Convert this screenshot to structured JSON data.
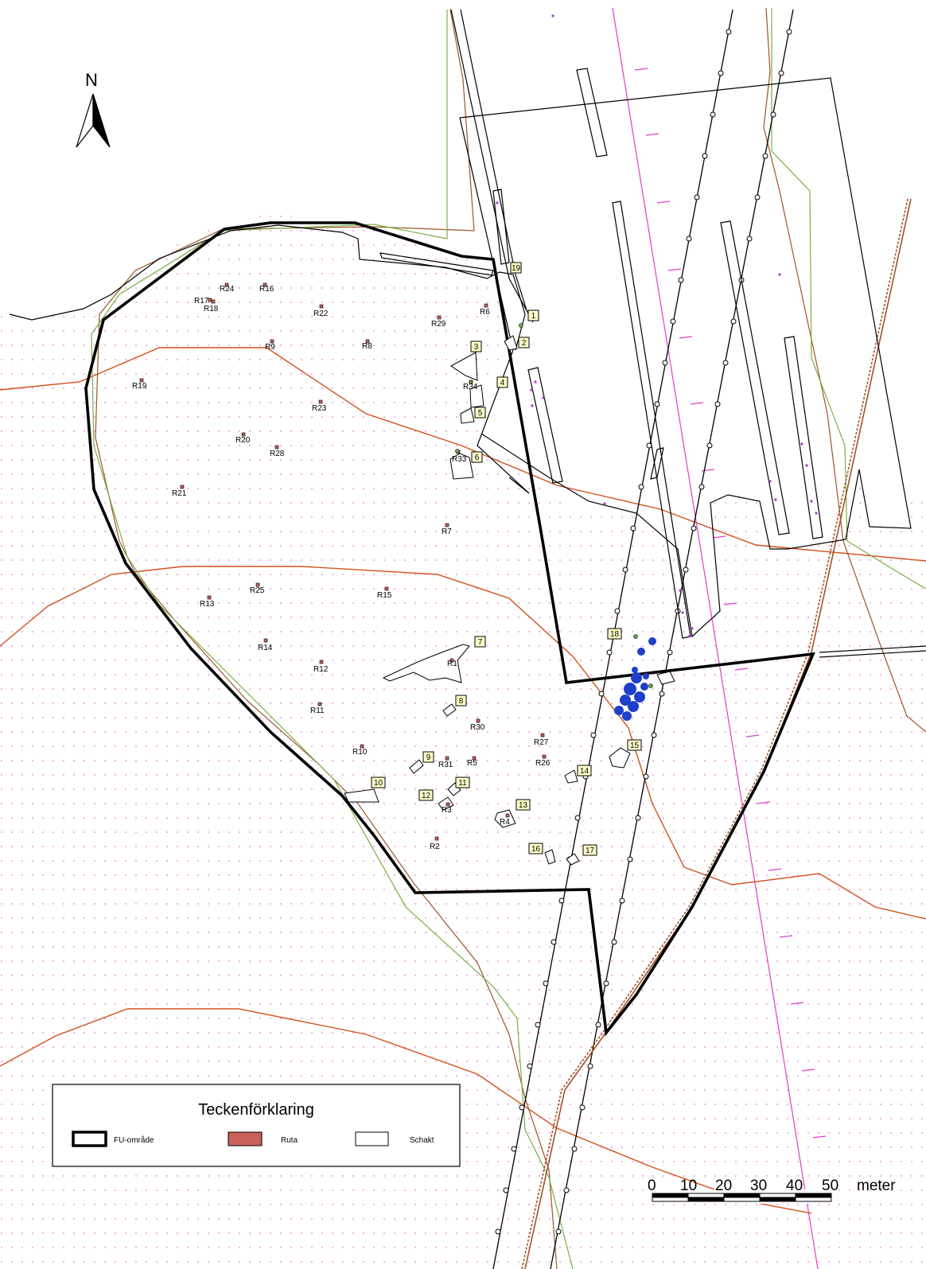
{
  "north_arrow": {
    "letter": "N"
  },
  "legend": {
    "title": "Teckenförklaring",
    "items": [
      {
        "label": "FU-område",
        "swatch": "thick-outline"
      },
      {
        "label": "Ruta",
        "swatch": "filled"
      },
      {
        "label": "Schakt",
        "swatch": "thin-outline"
      }
    ]
  },
  "scale_bar": {
    "ticks": [
      "0",
      "10",
      "20",
      "30",
      "40",
      "50"
    ],
    "unit": "meter"
  },
  "ruta_labels": [
    "R24",
    "R16",
    "R17",
    "R18",
    "R22",
    "R29",
    "R6",
    "R9",
    "R8",
    "R19",
    "R34",
    "R23",
    "R20",
    "R28",
    "R33",
    "R21",
    "R7",
    "R25",
    "R13",
    "R15",
    "R14",
    "R12",
    "R1",
    "R11",
    "R30",
    "R10",
    "R27",
    "R31",
    "R5",
    "R26",
    "R3",
    "R4",
    "R2"
  ],
  "schakt_numbers": [
    "19",
    "1",
    "2",
    "3",
    "4",
    "5",
    "6",
    "7",
    "8",
    "9",
    "10",
    "11",
    "12",
    "13",
    "14",
    "15",
    "16",
    "17",
    "18"
  ],
  "colors": {
    "fu_boundary": "#000000",
    "contour": "#d2501c",
    "brown_line": "#a0522d",
    "green_line": "#78b043",
    "magenta_line": "#e040c8",
    "ruta_fill": "#c9605a",
    "schakt_label_bg": "#ffffc8",
    "finds": "#1f3fc8",
    "pink_dots": "#e879d4"
  }
}
